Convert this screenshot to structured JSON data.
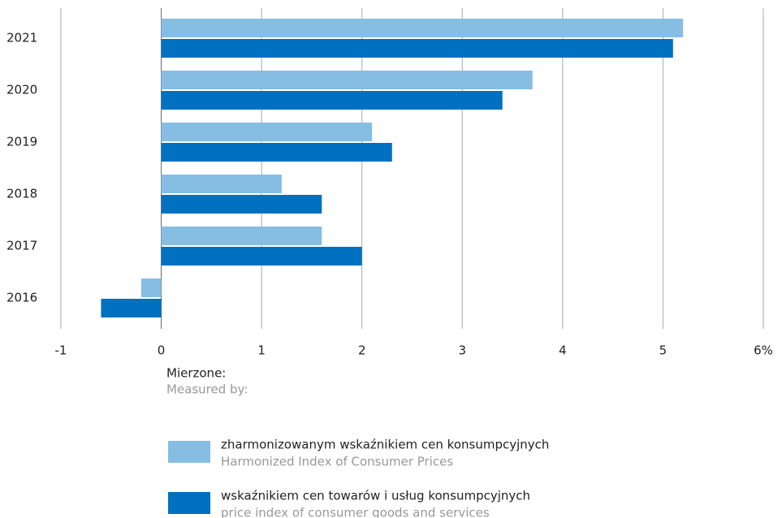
{
  "chart_data": {
    "type": "hbar",
    "categories": [
      "2021",
      "2020",
      "2019",
      "2018",
      "2017",
      "2016"
    ],
    "series": [
      {
        "name": "zharmonizowanym wskaźnikiem cen konsumpcyjnych",
        "name_en": "Harmonized Index of Consumer Prices",
        "color": "#85bde3",
        "values": [
          5.2,
          3.7,
          2.1,
          1.2,
          1.6,
          -0.2
        ]
      },
      {
        "name": "wskaźnikiem cen towarów i usług konsumpcyjnych",
        "name_en": "price index of consumer goods and services",
        "color": "#0070c0",
        "values": [
          5.1,
          3.4,
          2.3,
          1.6,
          2.0,
          -0.6
        ]
      }
    ],
    "xlim": [
      -1,
      6
    ],
    "xticks": [
      -1,
      0,
      1,
      2,
      3,
      4,
      5,
      {
        "value": 6,
        "label": "6%"
      }
    ],
    "grid": true,
    "legend_title": "Mierzone:",
    "legend_subtitle": "Measured by:"
  }
}
